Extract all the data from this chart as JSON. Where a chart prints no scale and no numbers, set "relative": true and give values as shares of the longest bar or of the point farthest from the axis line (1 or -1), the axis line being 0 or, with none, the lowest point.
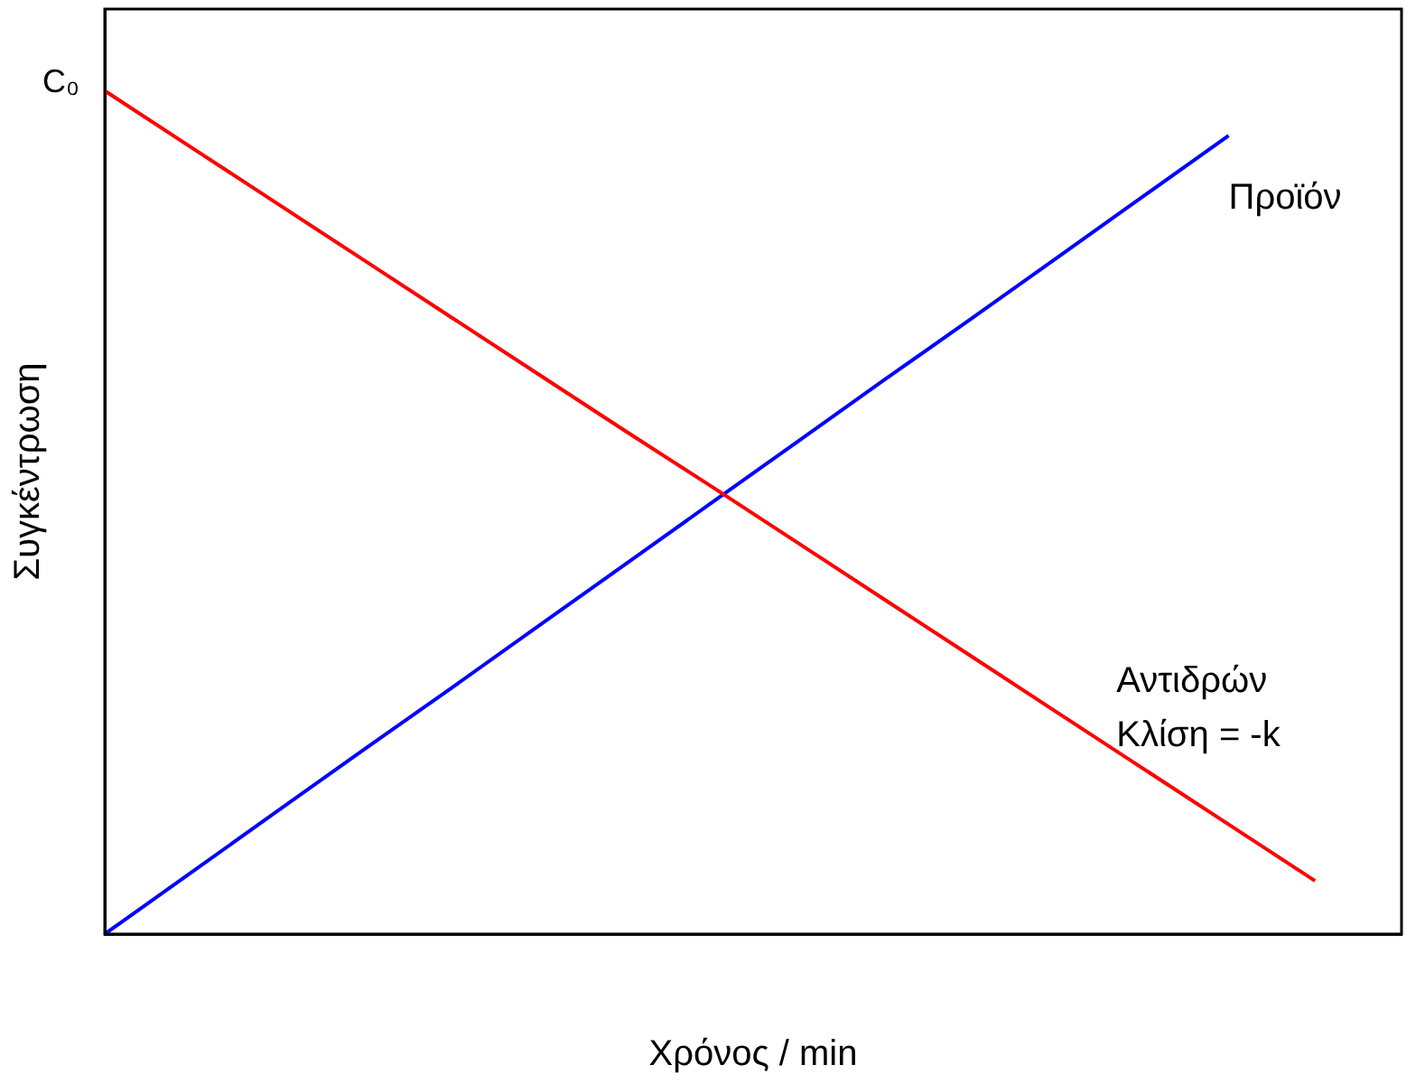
{
  "chart_data": {
    "type": "line",
    "relative": true,
    "xlabel": "Χρόνος / min",
    "ylabel": "Συγκέντρωση",
    "categories": [
      null,
      null,
      null,
      null,
      null,
      null,
      null,
      null,
      null,
      null,
      null,
      null,
      null,
      null,
      null,
      null
    ],
    "legend": false,
    "marker": "none",
    "line_style": "solid",
    "series": [
      {
        "name": "Αντιδρών",
        "color": "#ff0000",
        "values": [
          1,
          0.933,
          0.866,
          0.799,
          0.732,
          0.665,
          0.598,
          0.532,
          0.465,
          0.398,
          0.331,
          0.264,
          0.197,
          0.13,
          0.063,
          null
        ]
      },
      {
        "name": "Προϊόν",
        "color": "#0000ff",
        "values": [
          0,
          0.073,
          0.146,
          0.219,
          0.291,
          0.364,
          0.437,
          0.51,
          0.583,
          0.656,
          0.728,
          0.801,
          0.874,
          0.947,
          null,
          null
        ]
      }
    ],
    "annotations": [
      "C₀",
      "Κλίση = -k"
    ]
  }
}
